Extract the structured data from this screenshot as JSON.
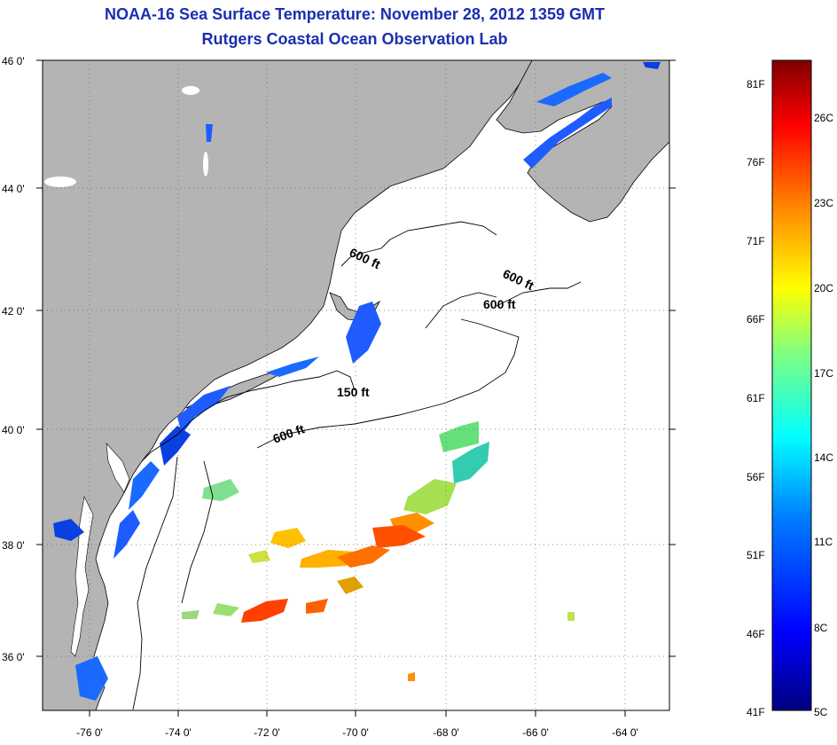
{
  "title": "NOAA-16 Sea Surface Temperature:  November 28, 2012 1359 GMT",
  "subtitle": "Rutgers Coastal Ocean Observation Lab",
  "axes": {
    "lat_labels": [
      "46 0'",
      "44 0'",
      "42 0'",
      "40 0'",
      "38 0'",
      "36 0'"
    ],
    "lon_labels": [
      "-76 0'",
      "-74 0'",
      "-72 0'",
      "-70 0'",
      "-68 0'",
      "-66 0'",
      "-64 0'"
    ]
  },
  "contours": {
    "c600a": "600 ft",
    "c600b": "600 ft",
    "c600c": "600 ft",
    "c600d": "600 ft",
    "c150": "150 ft"
  },
  "colorbar": {
    "fahrenheit": [
      "81F",
      "76F",
      "71F",
      "66F",
      "61F",
      "56F",
      "51F",
      "46F",
      "41F"
    ],
    "celsius": [
      "26C",
      "23C",
      "20C",
      "17C",
      "14C",
      "11C",
      "8C",
      "5C"
    ]
  },
  "colors": {
    "land": "#b4b4b4",
    "title": "#1a2fb0",
    "sea": "#ffffff"
  }
}
